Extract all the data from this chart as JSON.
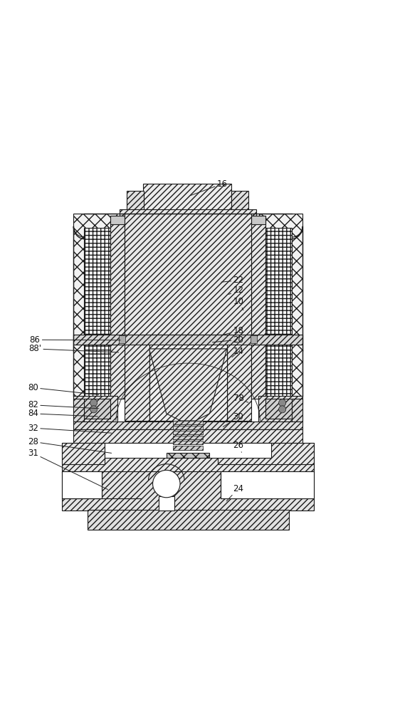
{
  "bg_color": "#ffffff",
  "lc": "#1a1a1a",
  "lw": 0.8,
  "fig_w": 5.62,
  "fig_h": 10.0,
  "dpi": 100,
  "labels": {
    "16": [
      0.595,
      0.022,
      0.505,
      0.055
    ],
    "22": [
      0.64,
      0.29,
      0.59,
      0.295
    ],
    "12": [
      0.64,
      0.318,
      0.61,
      0.33
    ],
    "10": [
      0.64,
      0.348,
      0.655,
      0.375
    ],
    "18": [
      0.64,
      0.43,
      0.595,
      0.442
    ],
    "20": [
      0.64,
      0.455,
      0.565,
      0.462
    ],
    "86": [
      0.075,
      0.455,
      0.315,
      0.456
    ],
    "88p": [
      0.075,
      0.48,
      0.31,
      0.49
    ],
    "14": [
      0.64,
      0.488,
      0.62,
      0.505
    ],
    "80": [
      0.07,
      0.588,
      0.255,
      0.608
    ],
    "78": [
      0.64,
      0.618,
      0.67,
      0.63
    ],
    "82": [
      0.07,
      0.636,
      0.255,
      0.646
    ],
    "84": [
      0.07,
      0.66,
      0.252,
      0.668
    ],
    "30": [
      0.64,
      0.67,
      0.595,
      0.698
    ],
    "32": [
      0.07,
      0.7,
      0.29,
      0.714
    ],
    "28": [
      0.07,
      0.738,
      0.29,
      0.77
    ],
    "26": [
      0.64,
      0.748,
      0.65,
      0.77
    ],
    "31": [
      0.07,
      0.77,
      0.28,
      0.872
    ],
    "24": [
      0.64,
      0.868,
      0.605,
      0.905
    ]
  }
}
